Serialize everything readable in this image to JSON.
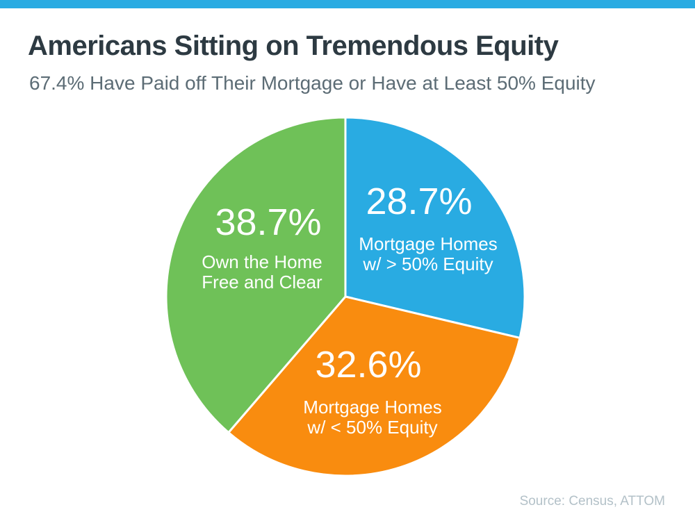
{
  "page": {
    "background_color": "#FFFFFF",
    "top_bar_color": "#29ABE2"
  },
  "header": {
    "title": "Americans Sitting on Tremendous Equity",
    "subtitle": "67.4% Have Paid off Their Mortgage or Have at Least 50% Equity",
    "title_color": "#2D3A42",
    "subtitle_color": "#5C6C75"
  },
  "source": {
    "text": "Source: Census, ATTOM",
    "color": "#B3C1C8"
  },
  "chart_data": {
    "type": "pie",
    "title": "Americans Sitting on Tremendous Equity",
    "subtitle": "67.4% Have Paid off Their Mortgage or Have at Least 50% Equity",
    "start_angle_deg": 0,
    "direction": "clockwise",
    "label_text_color": "#FFFFFF",
    "slice_divider_color": "#FFFFFF",
    "slices": [
      {
        "name": "Mortgage Homes w/ > 50% Equity",
        "value_pct": 28.7,
        "display_value": "28.7%",
        "label_line1": "Mortgage Homes",
        "label_line2": "w/ > 50% Equity",
        "color": "#29ABE2"
      },
      {
        "name": "Mortgage Homes w/ < 50% Equity",
        "value_pct": 32.6,
        "display_value": "32.6%",
        "label_line1": "Mortgage Homes",
        "label_line2": "w/ < 50% Equity",
        "color": "#F98C0F"
      },
      {
        "name": "Own the Home Free and Clear",
        "value_pct": 38.7,
        "display_value": "38.7%",
        "label_line1": "Own the Home",
        "label_line2": "Free and Clear",
        "color": "#6FC158"
      }
    ],
    "source": "Source: Census, ATTOM"
  }
}
